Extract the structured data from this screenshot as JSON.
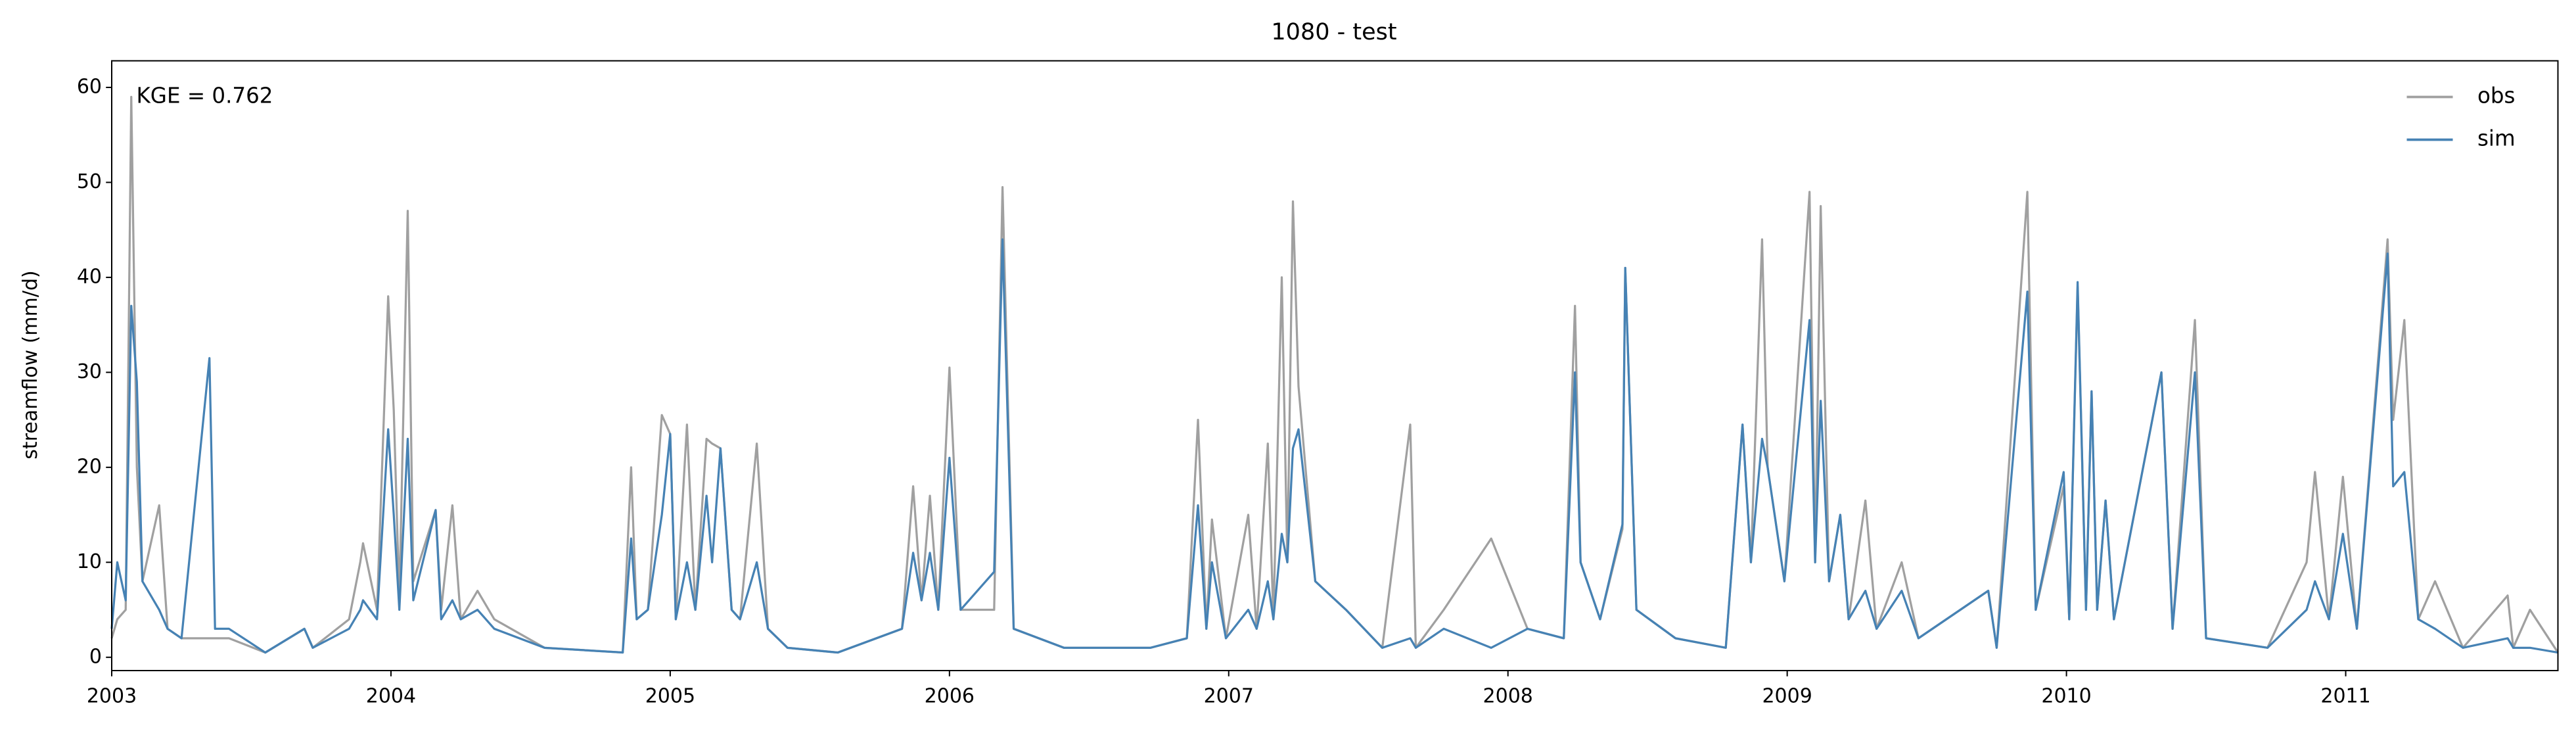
{
  "chart_data": {
    "type": "line",
    "title": "1080 - test",
    "ylabel": "streamflow (mm/d)",
    "annotation": "KGE = 0.762",
    "legend": "upper right",
    "grid": false,
    "xlim": [
      2003,
      2011.76
    ],
    "xticks": [
      2003,
      2004,
      2005,
      2006,
      2007,
      2008,
      2009,
      2010,
      2011
    ],
    "ylim": [
      -1.4,
      62.8
    ],
    "yticks": [
      0,
      10,
      20,
      30,
      40,
      50,
      60
    ],
    "x": [
      2003.0,
      2003.02,
      2003.05,
      2003.07,
      2003.09,
      2003.11,
      2003.17,
      2003.2,
      2003.25,
      2003.35,
      2003.37,
      2003.42,
      2003.55,
      2003.69,
      2003.72,
      2003.85,
      2003.89,
      2003.9,
      2003.95,
      2003.99,
      2004.01,
      2004.03,
      2004.06,
      2004.08,
      2004.16,
      2004.18,
      2004.22,
      2004.25,
      2004.31,
      2004.37,
      2004.55,
      2004.83,
      2004.86,
      2004.88,
      2004.92,
      2004.97,
      2005.0,
      2005.02,
      2005.06,
      2005.09,
      2005.13,
      2005.15,
      2005.18,
      2005.22,
      2005.25,
      2005.31,
      2005.35,
      2005.42,
      2005.6,
      2005.83,
      2005.87,
      2005.9,
      2005.93,
      2005.96,
      2006.0,
      2006.04,
      2006.16,
      2006.19,
      2006.23,
      2006.41,
      2006.72,
      2006.85,
      2006.89,
      2006.92,
      2006.94,
      2006.99,
      2007.07,
      2007.1,
      2007.14,
      2007.16,
      2007.19,
      2007.21,
      2007.23,
      2007.25,
      2007.31,
      2007.42,
      2007.55,
      2007.65,
      2007.67,
      2007.77,
      2007.94,
      2008.07,
      2008.2,
      2008.24,
      2008.26,
      2008.33,
      2008.41,
      2008.42,
      2008.46,
      2008.6,
      2008.78,
      2008.84,
      2008.87,
      2008.91,
      2008.93,
      2008.99,
      2009.08,
      2009.1,
      2009.12,
      2009.15,
      2009.19,
      2009.22,
      2009.28,
      2009.32,
      2009.41,
      2009.47,
      2009.72,
      2009.75,
      2009.86,
      2009.89,
      2009.99,
      2010.01,
      2010.04,
      2010.07,
      2010.09,
      2010.11,
      2010.14,
      2010.17,
      2010.34,
      2010.38,
      2010.46,
      2010.5,
      2010.72,
      2010.86,
      2010.89,
      2010.94,
      2010.99,
      2011.04,
      2011.15,
      2011.17,
      2011.21,
      2011.26,
      2011.32,
      2011.42,
      2011.58,
      2011.6,
      2011.66,
      2011.76
    ],
    "series": [
      {
        "name": "obs",
        "color": "#a0a0a0",
        "values": [
          2,
          4,
          5,
          59,
          20,
          8,
          16,
          3,
          2,
          2,
          2,
          2,
          0.5,
          3,
          1,
          4,
          10,
          12,
          5,
          38,
          26,
          6,
          47,
          8,
          15.5,
          5,
          16,
          4,
          7,
          4,
          1,
          0.5,
          20,
          4,
          5,
          25.5,
          23.5,
          4,
          24.5,
          5,
          23,
          22.5,
          22,
          5,
          4,
          22.5,
          3,
          1,
          0.5,
          3,
          18,
          6,
          17,
          5,
          30.5,
          5,
          5,
          49.5,
          3,
          1,
          1,
          2,
          25,
          3,
          14.5,
          2,
          15,
          3,
          22.5,
          4,
          40,
          10,
          48,
          28.5,
          8,
          5,
          1,
          24.5,
          1,
          5,
          12.5,
          3,
          2,
          37,
          10,
          4,
          13.5,
          41,
          5,
          2,
          1,
          24.5,
          10,
          44,
          20,
          8,
          49,
          10,
          47.5,
          8,
          15,
          4,
          16.5,
          3,
          10,
          2,
          7,
          1,
          49,
          5,
          18,
          4,
          39,
          5,
          28,
          5,
          16.5,
          4,
          30,
          3,
          35.5,
          2,
          1,
          10,
          19.5,
          4,
          19,
          3,
          44,
          25,
          35.5,
          4,
          8,
          1,
          6.5,
          1,
          5,
          0.5
        ]
      },
      {
        "name": "sim",
        "color": "#4682b4",
        "values": [
          3,
          10,
          6,
          37,
          29,
          8,
          5,
          3,
          2,
          31.5,
          3,
          3,
          0.5,
          3,
          1,
          3,
          5,
          6,
          4,
          24,
          15,
          5,
          23,
          6,
          15.5,
          4,
          6,
          4,
          5,
          3,
          1,
          0.5,
          12.5,
          4,
          5,
          15,
          23.5,
          4,
          10,
          5,
          17,
          10,
          22,
          5,
          4,
          10,
          3,
          1,
          0.5,
          3,
          11,
          6,
          11,
          5,
          21,
          5,
          9,
          44,
          3,
          1,
          1,
          2,
          16,
          3,
          10,
          2,
          5,
          3,
          8,
          4,
          13,
          10,
          22,
          24,
          8,
          5,
          1,
          2,
          1,
          3,
          1,
          3,
          2,
          30,
          10,
          4,
          14,
          41,
          5,
          2,
          1,
          24.5,
          10,
          23,
          20,
          8,
          35.5,
          10,
          27,
          8,
          15,
          4,
          7,
          3,
          7,
          2,
          7,
          1,
          38.5,
          5,
          19.5,
          4,
          39.5,
          5,
          28,
          5,
          16.5,
          4,
          30,
          3,
          30,
          2,
          1,
          5,
          8,
          4,
          13,
          3,
          42.5,
          18,
          19.5,
          4,
          3,
          1,
          2,
          1,
          1,
          0.5
        ]
      }
    ]
  }
}
